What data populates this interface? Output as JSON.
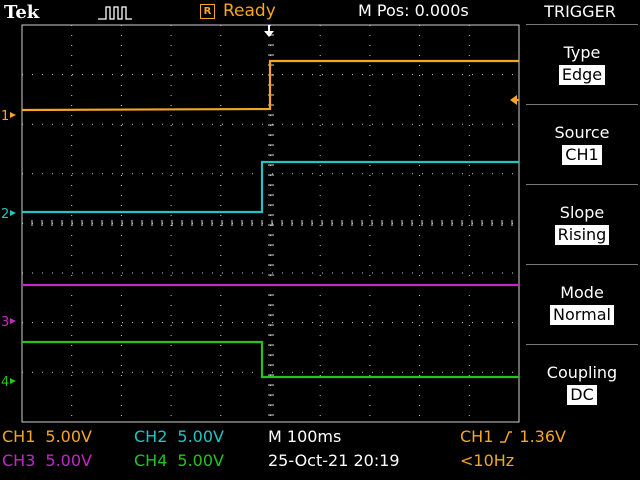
{
  "header": {
    "brand": "Tek",
    "acquisition_icon": "pulse-train-icon",
    "run_state_icon_letter": "R",
    "run_state": "Ready",
    "position": "M Pos: 0.000s"
  },
  "menu": {
    "title": "TRIGGER",
    "items": [
      {
        "label": "Type",
        "value": "Edge"
      },
      {
        "label": "Source",
        "value": "CH1"
      },
      {
        "label": "Slope",
        "value": "Rising"
      },
      {
        "label": "Mode",
        "value": "Normal"
      },
      {
        "label": "Coupling",
        "value": "DC"
      }
    ]
  },
  "channels": [
    {
      "name": "CH1",
      "marker": "1",
      "scale": "5.00V",
      "color": "#f5a623"
    },
    {
      "name": "CH2",
      "marker": "2",
      "scale": "5.00V",
      "color": "#22c4c4"
    },
    {
      "name": "CH3",
      "marker": "3",
      "scale": "5.00V",
      "color": "#c228c2"
    },
    {
      "name": "CH4",
      "marker": "4",
      "scale": "5.00V",
      "color": "#22c422"
    }
  ],
  "readouts": {
    "timebase": "M 100ms",
    "datetime": "25-Oct-21 20:19",
    "trigger_source": "CH1",
    "trigger_slope_icon": "rising-edge-icon",
    "trigger_level": "1.36V",
    "trigger_freq": "<10Hz"
  },
  "colors": {
    "grid": "#cfcfcf",
    "accent": "#f5a623"
  }
}
